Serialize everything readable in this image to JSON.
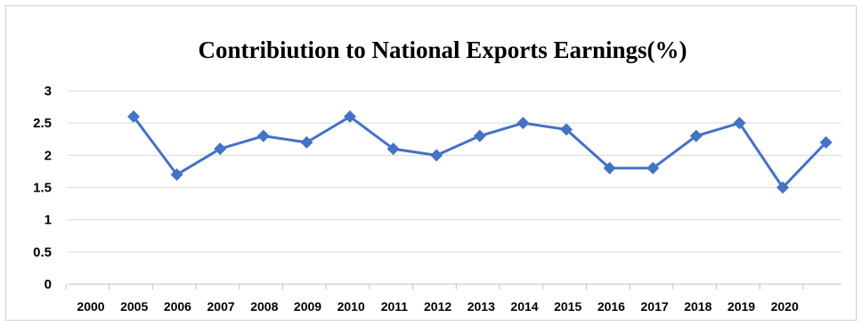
{
  "chart_data": {
    "type": "line",
    "title": "Contribiution to National Exports Earnings(%)",
    "xlabel": "",
    "ylabel": "",
    "ylim": [
      0,
      3
    ],
    "yticks": [
      "0",
      "0.5",
      "1",
      "1.5",
      "2",
      "2.5",
      "3"
    ],
    "grid": true,
    "legend": "none",
    "line_color": "#4472C4",
    "marker": "diamond",
    "x_tick_labels": [
      "2000",
      "2005",
      "2006",
      "2007",
      "2008",
      "2009",
      "2010",
      "2011",
      "2012",
      "2013",
      "2014",
      "2015",
      "2016",
      "2017",
      "2018",
      "2019",
      "2020"
    ],
    "series": [
      {
        "values": [
          2.6,
          1.7,
          2.1,
          2.3,
          2.2,
          2.6,
          2.1,
          2.0,
          2.3,
          2.5,
          2.4,
          1.8,
          1.8,
          2.3,
          2.5,
          1.5,
          2.2
        ]
      }
    ]
  }
}
